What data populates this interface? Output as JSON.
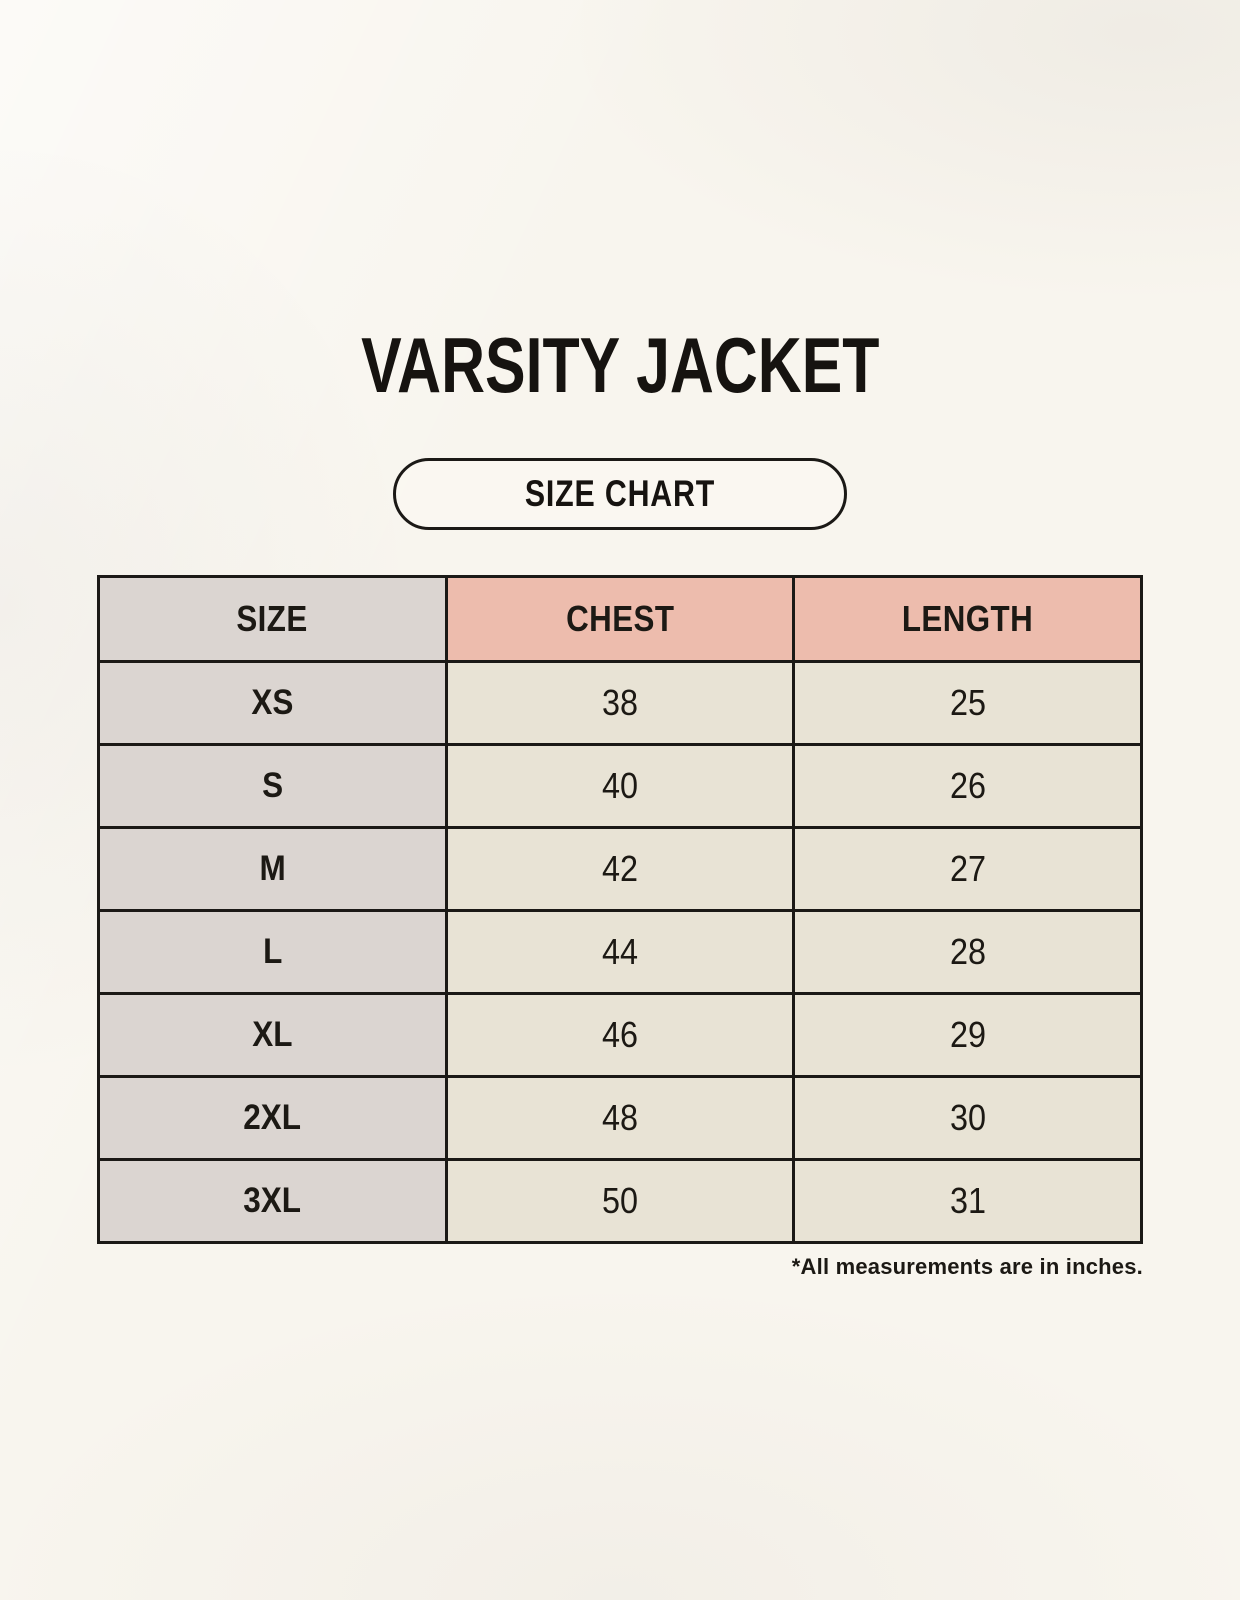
{
  "page": {
    "title": "VARSITY JACKET",
    "size_chart_button_label": "SIZE CHART",
    "footnote": "*All measurements are in inches."
  },
  "chart_data": {
    "type": "table",
    "title": "VARSITY JACKET",
    "subtitle": "SIZE CHART",
    "columns": [
      "SIZE",
      "CHEST",
      "LENGTH"
    ],
    "rows": [
      [
        "XS",
        "38",
        "25"
      ],
      [
        "S",
        "40",
        "26"
      ],
      [
        "M",
        "42",
        "27"
      ],
      [
        "L",
        "44",
        "28"
      ],
      [
        "XL",
        "46",
        "29"
      ],
      [
        "2XL",
        "48",
        "30"
      ],
      [
        "3XL",
        "50",
        "31"
      ]
    ],
    "units": "inches",
    "footnote": "*All measurements are in inches.",
    "layout_hints": {
      "size_column_bg": "gray",
      "measure_header_bg": "pink",
      "data_cell_bg": "beige",
      "grid": "on"
    }
  },
  "colors": {
    "page_background": "#f8f5ee",
    "size_column_bg": "#dbd5d1",
    "measure_header_bg": "#edbcad",
    "data_cell_bg": "#e8e3d5",
    "border": "#1b1916",
    "text": "#1c1914"
  }
}
